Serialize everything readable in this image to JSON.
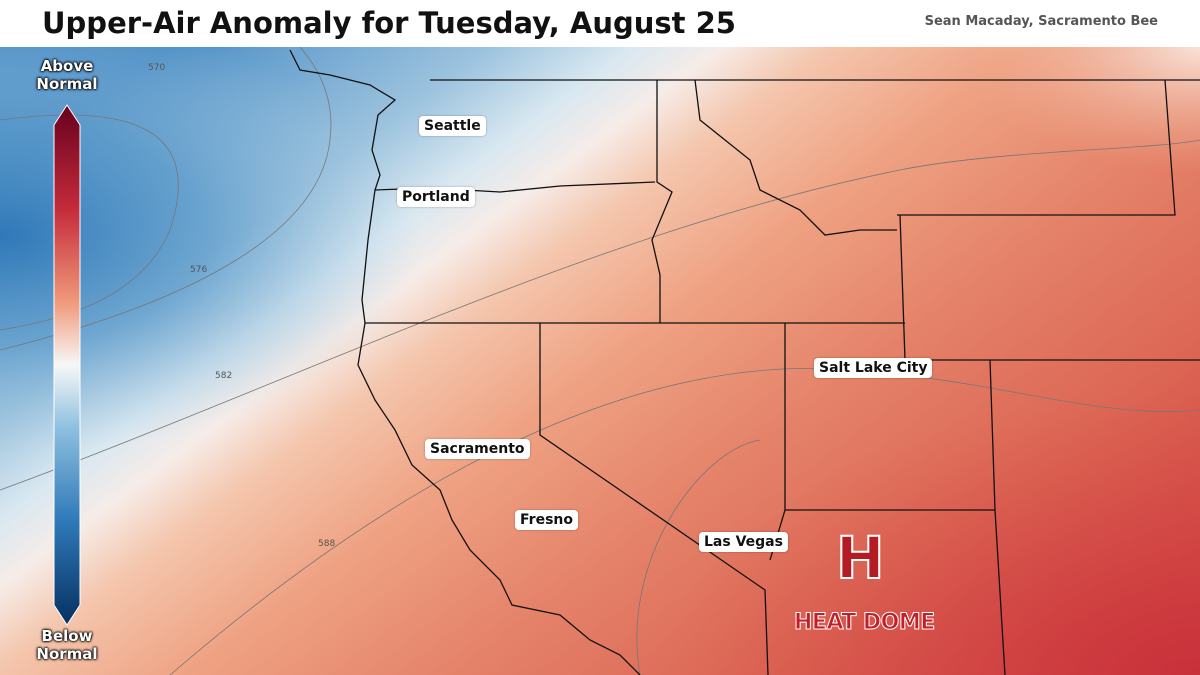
{
  "header": {
    "title": "Upper-Air Anomaly for Tuesday, August 25",
    "credit": "Sean Macaday, Sacramento Bee"
  },
  "legend": {
    "top": "Above Normal",
    "bottom": "Below Normal"
  },
  "cities": [
    "Seattle",
    "Portland",
    "Salt Lake City",
    "Sacramento",
    "Fresno",
    "Las Vegas"
  ],
  "contours": [
    "570",
    "576",
    "582",
    "588"
  ],
  "high": {
    "symbol": "H",
    "label": "HEAT DOME"
  }
}
